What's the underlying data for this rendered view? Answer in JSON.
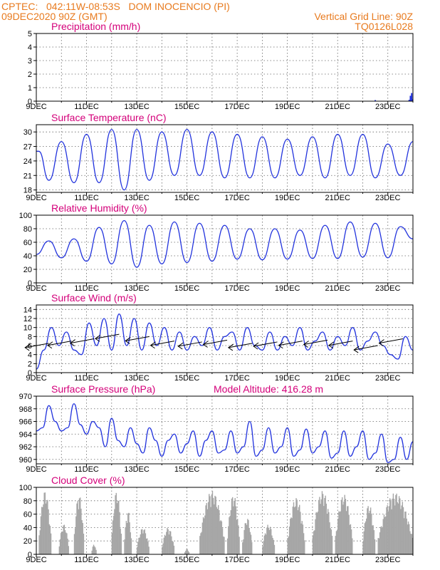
{
  "header": {
    "line1_left": "CPTEC:   042:11W-08:53S   DOM INOCENCIO (PI)",
    "line2_left": "09DEC2020 90Z (GMT)",
    "line1_right": "Vertical Grid Line: 90Z",
    "line2_right": "TQ0126L028"
  },
  "colors": {
    "header": "#e87a1e",
    "title": "#d4007a",
    "line": "#2233dd",
    "cloud": "#a6a6a6",
    "arrow": "#000000"
  },
  "x_labels": [
    "9DEC",
    "11DEC",
    "13DEC",
    "15DEC",
    "17DEC",
    "19DEC",
    "21DEC",
    "23DEC"
  ],
  "chart_data": [
    {
      "type": "bar",
      "title": "Precipitation (mm/h)",
      "ylim": [
        0,
        5
      ],
      "yticks": [
        "0",
        "1",
        "2",
        "3",
        "4",
        "5"
      ],
      "x_days": [
        0,
        15
      ],
      "bars": [
        {
          "day": 11.7,
          "value": 0.03
        },
        {
          "day": 13.0,
          "value": 0.02
        },
        {
          "day": 13.5,
          "value": 0.08
        },
        {
          "day": 14.85,
          "value": 0.1
        },
        {
          "day": 14.9,
          "value": 0.4
        },
        {
          "day": 14.95,
          "value": 0.6
        },
        {
          "day": 14.98,
          "value": 0.15
        }
      ]
    },
    {
      "type": "line",
      "title": "Surface Temperature (nC)",
      "ylim": [
        17.5,
        31.5
      ],
      "yticks": [
        "18",
        "21",
        "24",
        "27",
        "30"
      ],
      "ytick_values": [
        18,
        21,
        24,
        27,
        30
      ],
      "x_days": [
        0,
        15
      ],
      "x": [
        0,
        0.1,
        0.5,
        1,
        1.5,
        2,
        2.5,
        3,
        3.5,
        4,
        4.5,
        5,
        5.5,
        6,
        6.5,
        7,
        7.5,
        8,
        8.5,
        9,
        9.5,
        10,
        10.5,
        11,
        11.5,
        12,
        12.5,
        13,
        13.5,
        14,
        14.5,
        15
      ],
      "y": [
        26,
        26,
        20,
        28,
        19.5,
        29.5,
        19.5,
        30.5,
        18,
        30.5,
        20,
        30,
        21,
        30.5,
        21,
        30,
        20.5,
        29.5,
        20.5,
        29,
        20.5,
        28.5,
        21,
        29,
        20.5,
        29.5,
        21,
        29.5,
        20.5,
        27.5,
        21,
        28
      ]
    },
    {
      "type": "line",
      "title": "Relative Humidity (%)",
      "ylim": [
        0,
        100
      ],
      "yticks": [
        "0",
        "20",
        "40",
        "60",
        "80",
        "100"
      ],
      "ytick_values": [
        0,
        20,
        40,
        60,
        80,
        100
      ],
      "x_days": [
        0,
        15
      ],
      "x": [
        0,
        0.5,
        1,
        1.5,
        2,
        2.5,
        3,
        3.5,
        4,
        4.5,
        5,
        5.5,
        6,
        6.5,
        7,
        7.5,
        8,
        8.5,
        9,
        9.5,
        10,
        10.5,
        11,
        11.5,
        12,
        12.5,
        13,
        13.5,
        14,
        14.5,
        15
      ],
      "y": [
        42,
        62,
        37,
        65,
        32,
        82,
        28,
        92,
        23,
        85,
        28,
        90,
        30,
        88,
        32,
        85,
        35,
        80,
        34,
        80,
        35,
        78,
        36,
        85,
        36,
        90,
        38,
        88,
        37,
        83,
        65
      ]
    },
    {
      "type": "line",
      "title": "Surface Wind (m/s)",
      "ylim": [
        0,
        15
      ],
      "yticks": [
        "0",
        "2",
        "4",
        "6",
        "8",
        "10",
        "12",
        "14"
      ],
      "ytick_values": [
        0,
        2,
        4,
        6,
        8,
        10,
        12,
        14
      ],
      "x_days": [
        0,
        15
      ],
      "x": [
        0,
        0.3,
        0.6,
        0.9,
        1.2,
        1.5,
        1.8,
        2.1,
        2.4,
        2.7,
        3,
        3.3,
        3.6,
        3.9,
        4.2,
        4.5,
        4.8,
        5.1,
        5.4,
        5.7,
        6,
        6.3,
        6.6,
        6.9,
        7.2,
        7.5,
        7.8,
        8.1,
        8.4,
        8.7,
        9,
        9.3,
        9.6,
        9.9,
        10.2,
        10.5,
        10.8,
        11.1,
        11.4,
        11.7,
        12,
        12.3,
        12.6,
        12.9,
        13.2,
        13.5,
        13.8,
        14.1,
        14.4,
        14.7,
        15
      ],
      "y": [
        0.8,
        5,
        10,
        6,
        9,
        5,
        4,
        11,
        6,
        12,
        5,
        13,
        6,
        12,
        5,
        11,
        6,
        10,
        5,
        9,
        5,
        8,
        6,
        10,
        5,
        8,
        9,
        5,
        10,
        6,
        5,
        9,
        5,
        8,
        6,
        10,
        5,
        7,
        9,
        5,
        8,
        6,
        10,
        5,
        7,
        9,
        6,
        4,
        3,
        8,
        5
      ],
      "arrows": [
        {
          "day": 0.5,
          "speed": 6.5
        },
        {
          "day": 1.4,
          "speed": 7
        },
        {
          "day": 2.3,
          "speed": 7.5
        },
        {
          "day": 3.3,
          "speed": 8.5
        },
        {
          "day": 4.5,
          "speed": 8
        },
        {
          "day": 5.5,
          "speed": 7
        },
        {
          "day": 6.6,
          "speed": 6.8
        },
        {
          "day": 7.6,
          "speed": 7.2
        },
        {
          "day": 8.6,
          "speed": 6.5
        },
        {
          "day": 9.6,
          "speed": 6.8
        },
        {
          "day": 10.6,
          "speed": 7
        },
        {
          "day": 11.6,
          "speed": 7.2
        },
        {
          "day": 12.6,
          "speed": 7
        },
        {
          "day": 13.6,
          "speed": 6
        },
        {
          "day": 14.6,
          "speed": 7.5
        }
      ]
    },
    {
      "type": "line",
      "title": "Surface Pressure (hPa)",
      "subtitle": "Model Altitude: 416.28 m",
      "ylim": [
        959.3,
        970
      ],
      "yticks": [
        "960",
        "962",
        "964",
        "966",
        "968",
        "970"
      ],
      "ytick_values": [
        960,
        962,
        964,
        966,
        968,
        970
      ],
      "x_days": [
        0,
        15
      ],
      "x": [
        0,
        0.25,
        0.5,
        0.75,
        1,
        1.25,
        1.5,
        1.75,
        2,
        2.25,
        2.5,
        2.75,
        3,
        3.25,
        3.5,
        3.75,
        4,
        4.25,
        4.5,
        4.75,
        5,
        5.25,
        5.5,
        5.75,
        6,
        6.25,
        6.5,
        6.75,
        7,
        7.25,
        7.5,
        7.75,
        8,
        8.25,
        8.5,
        8.75,
        9,
        9.25,
        9.5,
        9.75,
        10,
        10.25,
        10.5,
        10.75,
        11,
        11.25,
        11.5,
        11.75,
        12,
        12.25,
        12.5,
        12.75,
        13,
        13.25,
        13.5,
        13.75,
        14,
        14.25,
        14.5,
        14.75,
        15
      ],
      "y": [
        964.5,
        965,
        968.5,
        966,
        964.5,
        965,
        968.8,
        965.5,
        964,
        966,
        965,
        962,
        966.5,
        963,
        962,
        965,
        962.5,
        961,
        965,
        963,
        960.5,
        963,
        964,
        961,
        962.5,
        964.5,
        960.5,
        963,
        964.5,
        961,
        961.5,
        964.5,
        961,
        962,
        966,
        960.5,
        961.5,
        965,
        961,
        962,
        965,
        960.5,
        961.5,
        964.8,
        961,
        962,
        964.5,
        960.2,
        961,
        964.5,
        960.5,
        962,
        964.5,
        960,
        961,
        964,
        959.5,
        960,
        963.5,
        960,
        962.8
      ]
    },
    {
      "type": "bar",
      "title": "Cloud Cover (%)",
      "ylim": [
        0,
        100
      ],
      "yticks": [
        "0",
        "20",
        "40",
        "60",
        "80",
        "100"
      ],
      "ytick_values": [
        0,
        20,
        40,
        60,
        80,
        100
      ],
      "x_days": [
        0,
        15
      ],
      "segments": [
        {
          "start": 0.1,
          "end": 0.6,
          "peak": 95
        },
        {
          "start": 0.9,
          "end": 1.3,
          "peak": 45
        },
        {
          "start": 1.5,
          "end": 1.9,
          "peak": 90
        },
        {
          "start": 2.2,
          "end": 2.4,
          "peak": 15
        },
        {
          "start": 3.0,
          "end": 3.4,
          "peak": 95
        },
        {
          "start": 3.5,
          "end": 3.8,
          "peak": 65
        },
        {
          "start": 4.0,
          "end": 4.5,
          "peak": 40
        },
        {
          "start": 5.0,
          "end": 5.5,
          "peak": 40
        },
        {
          "start": 5.9,
          "end": 6.1,
          "peak": 8
        },
        {
          "start": 6.5,
          "end": 7.5,
          "peak": 95
        },
        {
          "start": 7.6,
          "end": 8.1,
          "peak": 90
        },
        {
          "start": 8.2,
          "end": 8.6,
          "peak": 55
        },
        {
          "start": 9.0,
          "end": 9.5,
          "peak": 45
        },
        {
          "start": 10.0,
          "end": 10.7,
          "peak": 85
        },
        {
          "start": 11.0,
          "end": 11.8,
          "peak": 95
        },
        {
          "start": 11.9,
          "end": 12.6,
          "peak": 90
        },
        {
          "start": 13.0,
          "end": 13.5,
          "peak": 75
        },
        {
          "start": 13.6,
          "end": 15.0,
          "peak": 92
        }
      ]
    }
  ]
}
